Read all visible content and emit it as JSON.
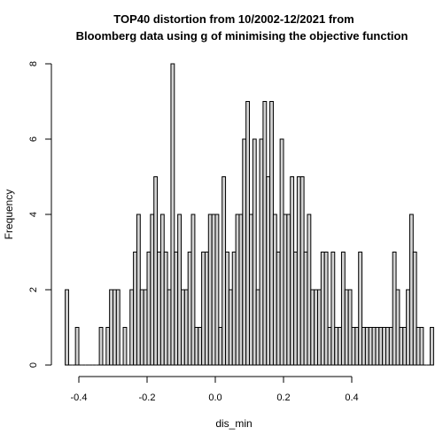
{
  "chart_data": {
    "type": "bar",
    "title_line1": "TOP40 distortion from 10/2002-12/2021 from",
    "title_line2": "Bloomberg data using g of minimising the objective function",
    "xlabel": "dis_min",
    "ylabel": "Frequency",
    "xlim": [
      -0.45,
      0.55
    ],
    "ylim": [
      0,
      8
    ],
    "x_ticks": [
      -0.4,
      -0.2,
      0.0,
      0.2,
      0.4
    ],
    "x_tick_labels": [
      "-0.4",
      "-0.2",
      "0.0",
      "0.2",
      "0.4"
    ],
    "y_ticks": [
      0,
      2,
      4,
      6,
      8
    ],
    "y_tick_labels": [
      "0",
      "2",
      "4",
      "6",
      "8"
    ],
    "bin_width": 0.01,
    "bin_start": -0.44,
    "counts": [
      2,
      0,
      0,
      1,
      0,
      0,
      0,
      0,
      0,
      0,
      1,
      0,
      1,
      2,
      2,
      2,
      0,
      1,
      0,
      2,
      3,
      4,
      2,
      2,
      3,
      4,
      5,
      3,
      4,
      3,
      2,
      8,
      3,
      4,
      2,
      2,
      3,
      4,
      1,
      1,
      3,
      3,
      4,
      4,
      4,
      1,
      5,
      3,
      2,
      3,
      4,
      4,
      6,
      7,
      4,
      6,
      2,
      6,
      7,
      5,
      7,
      4,
      3,
      6,
      4,
      4,
      5,
      3,
      5,
      5,
      3,
      4,
      2,
      2,
      2,
      3,
      3,
      1,
      3,
      1,
      1,
      3,
      2,
      2,
      1,
      1,
      3,
      1,
      1,
      1,
      1,
      1,
      1,
      1,
      1,
      1,
      3,
      2,
      1,
      1,
      2,
      4,
      3,
      1,
      1,
      0,
      0,
      1
    ]
  }
}
